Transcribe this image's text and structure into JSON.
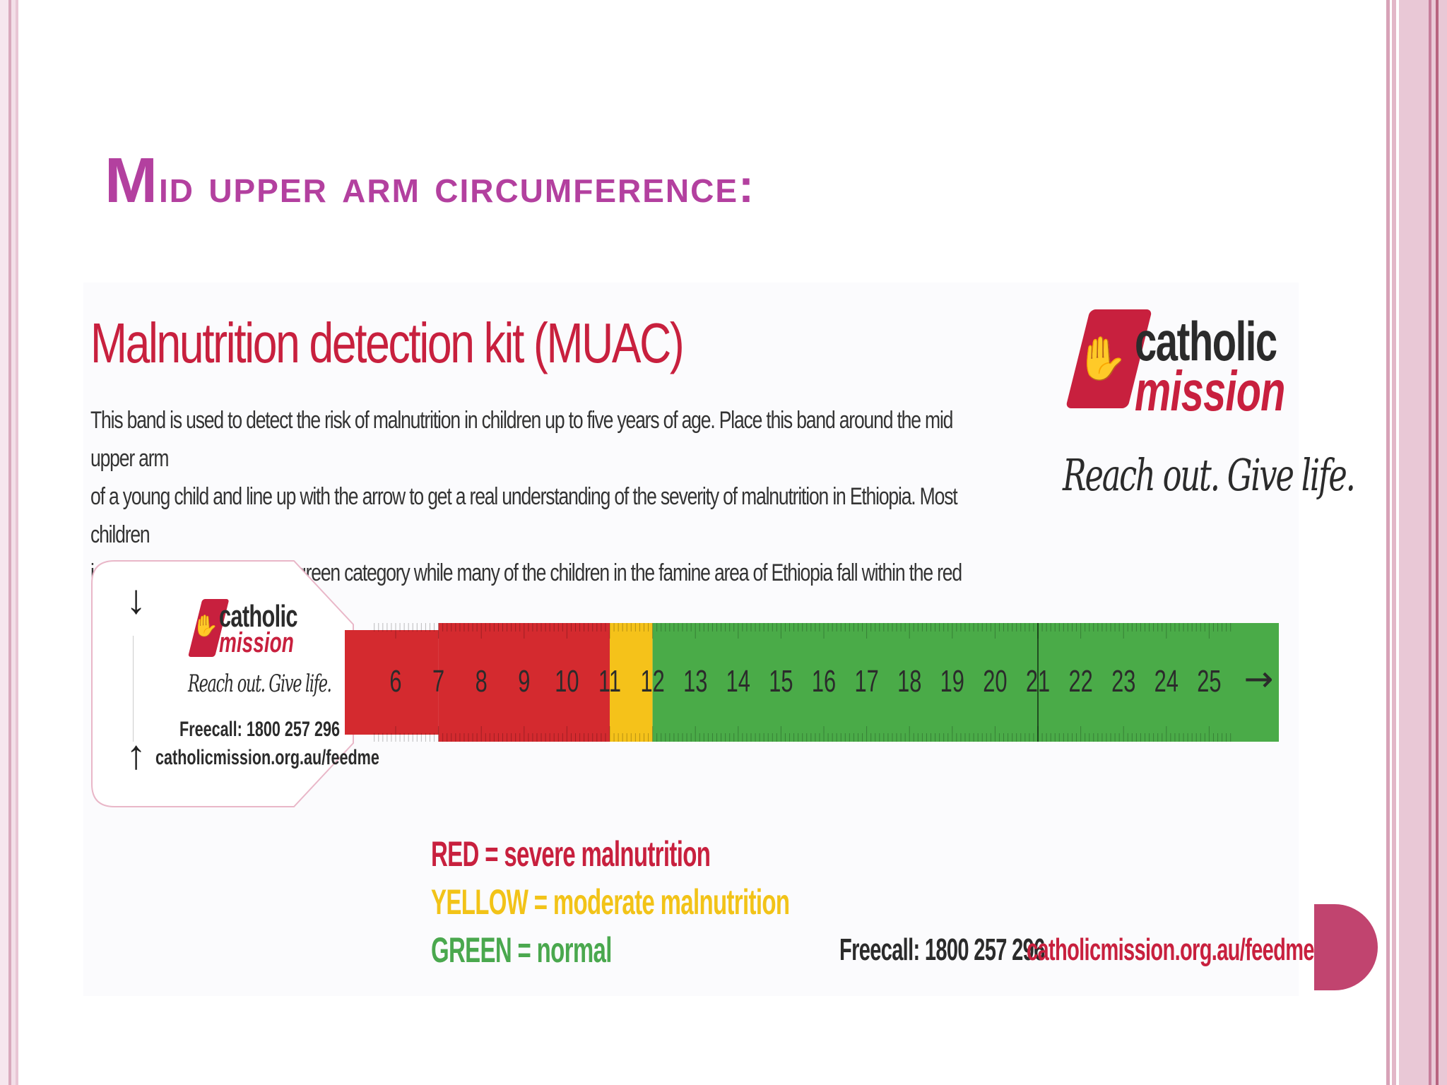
{
  "slide": {
    "title_first": "M",
    "title_rest": "id upper arm circumference:"
  },
  "kit": {
    "title": "Malnutrition detection kit (MUAC)",
    "description": [
      "This band is used to detect the risk of malnutrition in children up to five years of age. Place this band around the mid upper arm",
      "of a young child and line up with the arrow to get a real understanding of the severity of malnutrition in Ethiopia. Most children",
      "in Australia would fall in the green category while many of the children in the famine area of Ethiopia fall within the red category."
    ],
    "logo": {
      "word1": "catholic",
      "word2": "mission",
      "tagline": "Reach out. Give life."
    },
    "tape": {
      "arrow_down": "↓",
      "arrow_up": "↑",
      "freecall": "Freecall: 1800 257 296",
      "url": "catholicmission.org.au/feedme",
      "end_arrow": "→",
      "ticks": [
        6,
        7,
        8,
        9,
        10,
        11,
        12,
        13,
        14,
        15,
        16,
        17,
        18,
        19,
        20,
        21,
        22,
        23,
        24,
        25
      ],
      "zones": [
        {
          "name": "red",
          "from": 5.5,
          "to": 11.0,
          "color": "#d42a2f"
        },
        {
          "name": "yellow",
          "from": 11.0,
          "to": 12.0,
          "color": "#f5c21a"
        },
        {
          "name": "green",
          "from": 12.0,
          "to": 26.8,
          "color": "#4aab48"
        }
      ]
    },
    "legend": {
      "red": "RED = severe malnutrition",
      "yellow": "YELLOW = moderate malnutrition",
      "green": "GREEN = normal"
    },
    "footer": {
      "freecall": "Freecall: 1800 257 296",
      "url": "catholicmission.org.au/feedme"
    }
  },
  "colors": {
    "title": "#b3409f",
    "brand_red": "#c8203e",
    "frame_pink": "#d9a9bd",
    "dot": "#c1446f"
  }
}
